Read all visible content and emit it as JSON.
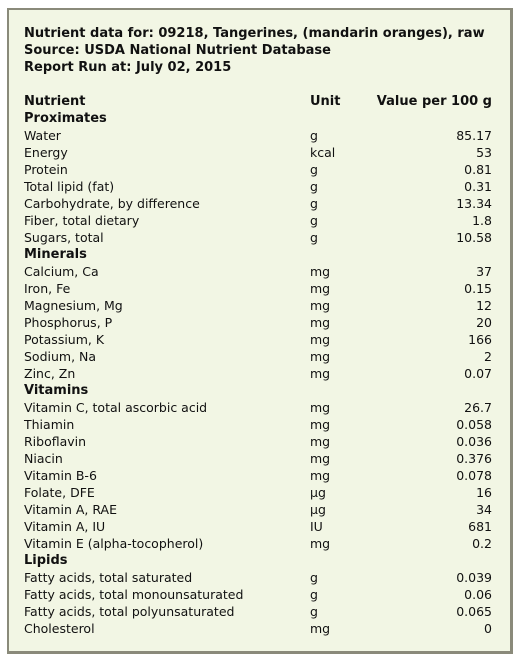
{
  "header": {
    "line1": "Nutrient data for: 09218, Tangerines, (mandarin oranges), raw",
    "line2": "Source: USDA National Nutrient Database",
    "line3": "Report Run at: July 02, 2015"
  },
  "table": {
    "columns": [
      "Nutrient",
      "Unit",
      "Value per 100 g"
    ],
    "rows": [
      {
        "section": "Proximates"
      },
      {
        "name": "Water",
        "unit": "g",
        "value": "85.17"
      },
      {
        "name": "Energy",
        "unit": "kcal",
        "value": "53"
      },
      {
        "name": "Protein",
        "unit": "g",
        "value": "0.81"
      },
      {
        "name": "Total lipid (fat)",
        "unit": "g",
        "value": "0.31"
      },
      {
        "name": "Carbohydrate, by difference",
        "unit": "g",
        "value": "13.34"
      },
      {
        "name": "Fiber, total dietary",
        "unit": "g",
        "value": "1.8"
      },
      {
        "name": "Sugars, total",
        "unit": "g",
        "value": "10.58"
      },
      {
        "section": "Minerals"
      },
      {
        "name": "Calcium, Ca",
        "unit": "mg",
        "value": "37"
      },
      {
        "name": "Iron, Fe",
        "unit": "mg",
        "value": "0.15"
      },
      {
        "name": "Magnesium, Mg",
        "unit": "mg",
        "value": "12"
      },
      {
        "name": "Phosphorus, P",
        "unit": "mg",
        "value": "20"
      },
      {
        "name": "Potassium, K",
        "unit": "mg",
        "value": "166"
      },
      {
        "name": "Sodium, Na",
        "unit": "mg",
        "value": "2"
      },
      {
        "name": "Zinc, Zn",
        "unit": "mg",
        "value": "0.07"
      },
      {
        "section": "Vitamins"
      },
      {
        "name": "Vitamin C, total ascorbic acid",
        "unit": "mg",
        "value": "26.7"
      },
      {
        "name": "Thiamin",
        "unit": "mg",
        "value": "0.058"
      },
      {
        "name": "Riboflavin",
        "unit": "mg",
        "value": "0.036"
      },
      {
        "name": "Niacin",
        "unit": "mg",
        "value": "0.376"
      },
      {
        "name": "Vitamin B-6",
        "unit": "mg",
        "value": "0.078"
      },
      {
        "name": "Folate, DFE",
        "unit": "µg",
        "value": "16"
      },
      {
        "name": "Vitamin A, RAE",
        "unit": "µg",
        "value": "34"
      },
      {
        "name": "Vitamin A, IU",
        "unit": "IU",
        "value": "681"
      },
      {
        "name": "Vitamin E (alpha-tocopherol)",
        "unit": "mg",
        "value": "0.2"
      },
      {
        "section": "Lipids"
      },
      {
        "name": "Fatty acids, total saturated",
        "unit": "g",
        "value": "0.039"
      },
      {
        "name": "Fatty acids, total monounsaturated",
        "unit": "g",
        "value": "0.06"
      },
      {
        "name": "Fatty acids, total polyunsaturated",
        "unit": "g",
        "value": "0.065"
      },
      {
        "name": "Cholesterol",
        "unit": "mg",
        "value": "0"
      }
    ]
  }
}
